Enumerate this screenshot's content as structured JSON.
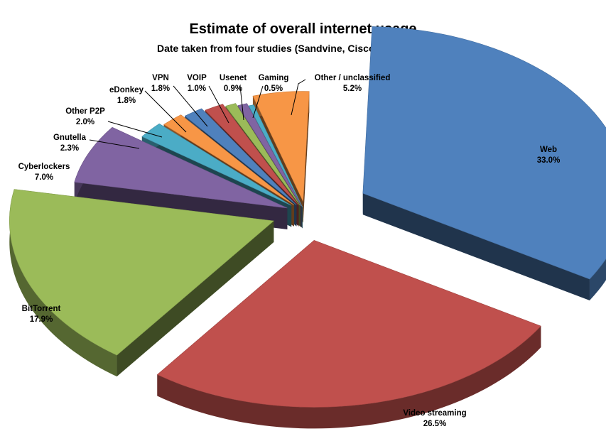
{
  "chart_data": {
    "type": "pie",
    "title": "Estimate of overall internet usage",
    "subtitle": "Date taken from four studies (Sandvine, Cisco, iPoque, Arbor)",
    "series": [
      {
        "values": [
          33.0,
          26.5,
          17.9,
          7.0,
          2.3,
          2.0,
          1.8,
          1.8,
          1.0,
          0.9,
          0.5,
          5.2
        ]
      }
    ],
    "slices": [
      {
        "name": "Web",
        "value": 33.0,
        "value_label": "33.0%",
        "color": "#4F81BD"
      },
      {
        "name": "Video streaming",
        "value": 26.5,
        "value_label": "26.5%",
        "color": "#C0504D"
      },
      {
        "name": "BitTorrent",
        "value": 17.9,
        "value_label": "17.9%",
        "color": "#9BBB59"
      },
      {
        "name": "Cyberlockers",
        "value": 7.0,
        "value_label": "7.0%",
        "color": "#8064A2"
      },
      {
        "name": "Gnutella",
        "value": 2.3,
        "value_label": "2.3%",
        "color": "#4BACC6"
      },
      {
        "name": "Other P2P",
        "value": 2.0,
        "value_label": "2.0%",
        "color": "#F79646"
      },
      {
        "name": "eDonkey",
        "value": 1.8,
        "value_label": "1.8%",
        "color": "#4F81BD"
      },
      {
        "name": "VPN",
        "value": 1.8,
        "value_label": "1.8%",
        "color": "#C0504D"
      },
      {
        "name": "VOIP",
        "value": 1.0,
        "value_label": "1.0%",
        "color": "#9BBB59"
      },
      {
        "name": "Usenet",
        "value": 0.9,
        "value_label": "0.9%",
        "color": "#8064A2"
      },
      {
        "name": "Gaming",
        "value": 0.5,
        "value_label": "0.5%",
        "color": "#4BACC6"
      },
      {
        "name": "Other / unclassified",
        "value": 5.2,
        "value_label": "5.2%",
        "color": "#F79646"
      }
    ],
    "style": "3d-exploded",
    "legend": "none"
  }
}
